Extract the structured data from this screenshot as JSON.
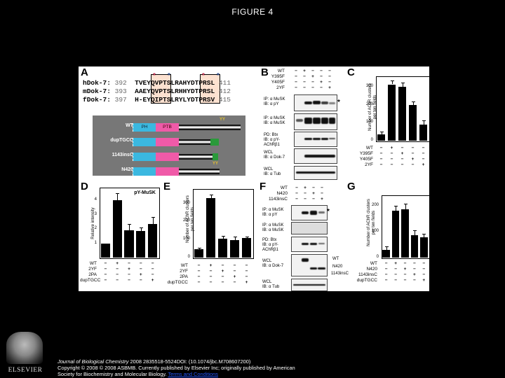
{
  "title": "FIGURE 4",
  "panel_labels": {
    "A": "A",
    "B": "B",
    "C": "C",
    "D": "D",
    "E": "E",
    "F": "F",
    "G": "G"
  },
  "panelA": {
    "sequences": [
      {
        "name": "hDok-7:",
        "start": "392",
        "seq": "TVEYQVPTSLRAHYDTPRSL",
        "end": "411"
      },
      {
        "name": "mDok-7:",
        "start": "393",
        "seq": "AAEYQVPTSLRHHYDTPRSL",
        "end": "412"
      },
      {
        "name": "fDok-7:",
        "start": "397",
        "seq": "H-EYQIPTSLRYLYDTPRSV",
        "end": "415"
      }
    ],
    "stars": [
      "*",
      "*",
      "*",
      "*"
    ],
    "constructs": [
      {
        "name": "WT",
        "ph": "PH",
        "ptb": "PTB",
        "yy": "YY"
      },
      {
        "name": "dupTGCC",
        "ph": "",
        "ptb": "",
        "yy": ""
      },
      {
        "name": "1143insC",
        "ph": "",
        "ptb": "",
        "yy": ""
      },
      {
        "name": "N420",
        "ph": "",
        "ptb": "",
        "yy": "YY"
      }
    ]
  },
  "panelB": {
    "conditions": [
      {
        "label": "WT",
        "signs": [
          "−",
          "+",
          "−",
          "−",
          "−"
        ]
      },
      {
        "label": "Y395F",
        "signs": [
          "−",
          "−",
          "+",
          "−",
          "−"
        ]
      },
      {
        "label": "Y405F",
        "signs": [
          "−",
          "−",
          "−",
          "+",
          "−"
        ]
      },
      {
        "label": "2YF",
        "signs": [
          "−",
          "−",
          "−",
          "−",
          "+"
        ]
      }
    ],
    "blots": [
      {
        "label": "IP: α MuSK\nIB: α pY",
        "marker": "*"
      },
      {
        "label": "IP: α MuSK\nIB: α MuSK",
        "marker": ""
      },
      {
        "label": "PD: Btx\nIB: α pY-\nAChRβ1",
        "marker": ""
      },
      {
        "label": "WCL\nIB: α Dok-7",
        "marker": ""
      },
      {
        "label": "WCL\nIB: α Tub",
        "marker": ""
      }
    ]
  },
  "panelF": {
    "conditions": [
      {
        "label": "WT",
        "signs": [
          "−",
          "+",
          "−",
          "−"
        ]
      },
      {
        "label": "N420",
        "signs": [
          "−",
          "−",
          "+",
          "−"
        ]
      },
      {
        "label": "1143insC",
        "signs": [
          "−",
          "−",
          "−",
          "+"
        ]
      }
    ],
    "blots": [
      {
        "label": "IP: α MuSK\nIB: α pY",
        "marker": "*"
      },
      {
        "label": "IP: α MuSK\nIB: α MuSK",
        "marker": ""
      },
      {
        "label": "PD: Btx\nIB: α pY-\nAChRβ1",
        "marker": ""
      },
      {
        "label": "WCL\nIB: α Dok-7",
        "marker": ""
      },
      {
        "label": "WCL\nIB: α Tub",
        "marker": ""
      }
    ],
    "band_labels": [
      "WT",
      "N420",
      "1143insC"
    ]
  },
  "chart_data": [
    {
      "panel": "C",
      "type": "bar",
      "title": "",
      "ylabel": "Number of AChR clusters\nper ten fields",
      "ylim": [
        0,
        360
      ],
      "yticks": [
        0,
        100,
        200,
        300
      ],
      "categories": [
        "control",
        "WT",
        "Y395F",
        "Y405F",
        "2YF"
      ],
      "values": [
        35,
        315,
        300,
        200,
        90
      ],
      "errors": [
        15,
        20,
        25,
        20,
        22
      ],
      "condition_rows": [
        {
          "label": "WT",
          "signs": [
            "−",
            "+",
            "−",
            "−",
            "−"
          ]
        },
        {
          "label": "Y395F",
          "signs": [
            "−",
            "−",
            "+",
            "−",
            "−"
          ]
        },
        {
          "label": "Y405F",
          "signs": [
            "−",
            "−",
            "−",
            "+",
            "−"
          ]
        },
        {
          "label": "2YF",
          "signs": [
            "−",
            "−",
            "−",
            "−",
            "+"
          ]
        }
      ]
    },
    {
      "panel": "D",
      "type": "bar",
      "title": "pY-MuSK",
      "ylabel": "Relative intensity",
      "ylim": [
        0,
        4.9
      ],
      "yticks": [
        1,
        2,
        3,
        4
      ],
      "categories": [
        "control",
        "WT",
        "2YF",
        "2PA",
        "dupTGCC"
      ],
      "values": [
        1.0,
        4.0,
        1.9,
        1.85,
        2.35
      ],
      "errors": [
        0,
        0.5,
        0.45,
        0.25,
        0.5
      ],
      "condition_rows": [
        {
          "label": "WT",
          "signs": [
            "−",
            "+",
            "−",
            "−",
            "−"
          ]
        },
        {
          "label": "2YF",
          "signs": [
            "−",
            "−",
            "+",
            "−",
            "−"
          ]
        },
        {
          "label": "2PA",
          "signs": [
            "−",
            "−",
            "−",
            "+",
            "−"
          ]
        },
        {
          "label": "dupTGCC",
          "signs": [
            "−",
            "−",
            "−",
            "−",
            "+"
          ]
        }
      ]
    },
    {
      "panel": "E",
      "type": "bar",
      "title": "",
      "ylabel": "Number of AChR clusters\nper ten fields",
      "ylim": [
        0,
        380
      ],
      "yticks": [
        0,
        100,
        200,
        300
      ],
      "categories": [
        "control",
        "WT",
        "2YF",
        "2PA",
        "dupTGCC"
      ],
      "values": [
        45,
        330,
        105,
        98,
        108
      ],
      "errors": [
        10,
        18,
        15,
        18,
        8
      ],
      "condition_rows": [
        {
          "label": "WT",
          "signs": [
            "−",
            "+",
            "−",
            "−",
            "−"
          ]
        },
        {
          "label": "2YF",
          "signs": [
            "−",
            "−",
            "+",
            "−",
            "−"
          ]
        },
        {
          "label": "2PA",
          "signs": [
            "−",
            "−",
            "−",
            "+",
            "−"
          ]
        },
        {
          "label": "dupTGCC",
          "signs": [
            "−",
            "−",
            "−",
            "−",
            "+"
          ]
        }
      ]
    },
    {
      "panel": "G",
      "type": "bar",
      "title": "",
      "ylabel": "Number of AChR clusters\nper ten fields",
      "ylim": [
        0,
        240
      ],
      "yticks": [
        0,
        100,
        200
      ],
      "categories": [
        "control",
        "WT",
        "N420",
        "1143insC",
        "dupTGCC"
      ],
      "values": [
        30,
        180,
        185,
        85,
        78
      ],
      "errors": [
        12,
        20,
        22,
        20,
        15
      ],
      "condition_rows": [
        {
          "label": "WT",
          "signs": [
            "−",
            "+",
            "−",
            "−",
            "−"
          ]
        },
        {
          "label": "N420",
          "signs": [
            "−",
            "−",
            "+",
            "−",
            "−"
          ]
        },
        {
          "label": "1143insC",
          "signs": [
            "−",
            "−",
            "−",
            "+",
            "−"
          ]
        },
        {
          "label": "dupTGCC",
          "signs": [
            "−",
            "−",
            "−",
            "−",
            "+"
          ]
        }
      ]
    }
  ],
  "footer": {
    "journal": "Journal of Biological Chemistry",
    "citation": " 2008 2835518-5524DOI: (10.1074/jbc.M708607200)",
    "copyright": "Copyright © 2008 © 2008 ASBMB. Currently published by Elsevier Inc; originally published by American",
    "line3": "Society for Biochemistry and Molecular Biology. ",
    "link": "Terms and Conditions"
  },
  "logo": {
    "text": "ELSEVIER"
  }
}
